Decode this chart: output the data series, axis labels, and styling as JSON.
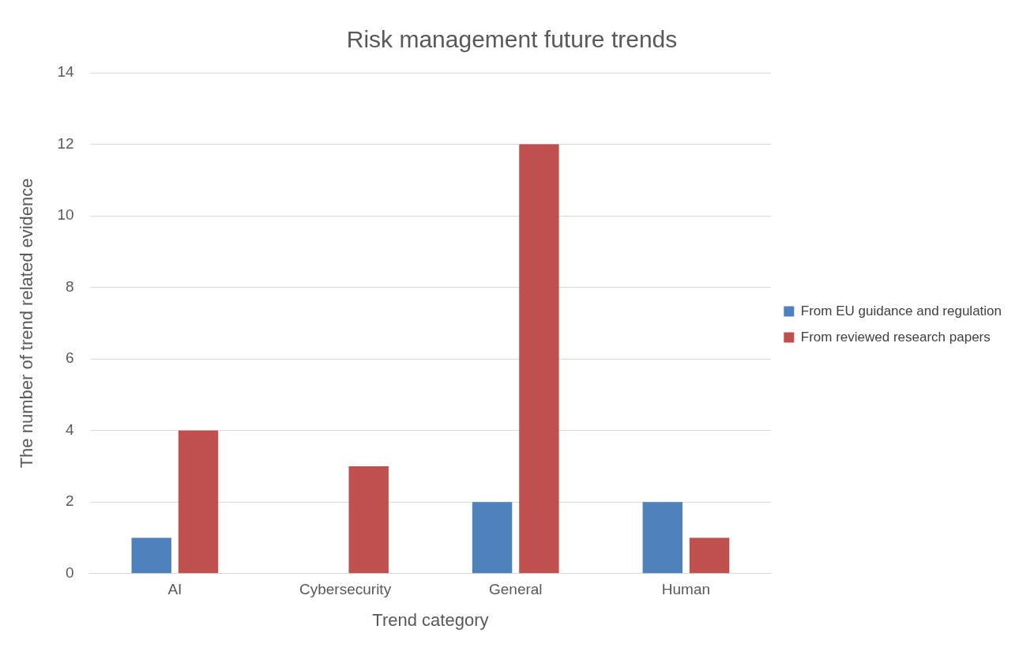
{
  "chart_data": {
    "type": "bar",
    "title": "Risk management future trends",
    "xlabel": "Trend category",
    "ylabel": "The number of trend related evidence",
    "categories": [
      "AI",
      "Cybersecurity",
      "General",
      "Human"
    ],
    "series": [
      {
        "name": "From EU guidance and regulation",
        "color": "#4f81bd",
        "values": [
          1,
          0,
          2,
          2
        ]
      },
      {
        "name": "From reviewed research papers",
        "color": "#c0504d",
        "values": [
          4,
          3,
          12,
          1
        ]
      }
    ],
    "ylim": [
      0,
      14
    ],
    "yticks": [
      0,
      2,
      4,
      6,
      8,
      10,
      12,
      14
    ],
    "grid": "y",
    "legend": "right"
  }
}
